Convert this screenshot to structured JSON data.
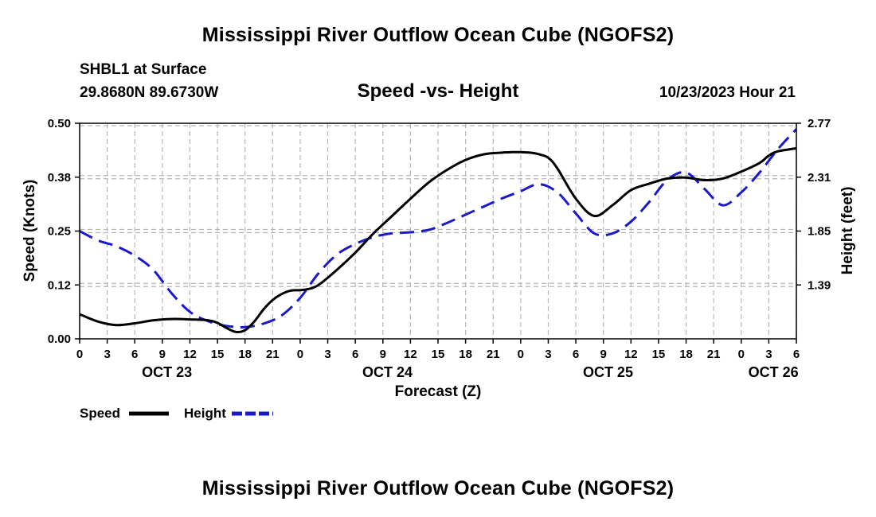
{
  "header": {
    "title": "Mississippi River Outflow Ocean Cube (NGOFS2)",
    "station": "SHBL1 at Surface",
    "coords": "29.8680N  89.6730W",
    "subtitle": "Speed -vs- Height",
    "timestamp": "10/23/2023 Hour 21"
  },
  "footer": {
    "title": "Mississippi River Outflow Ocean Cube (NGOFS2)"
  },
  "legend": {
    "speed_label": "Speed",
    "height_label": "Height"
  },
  "colors": {
    "speed": "#000000",
    "height": "#1a1acc",
    "grid": "#b8b8b8"
  },
  "chart_data": {
    "type": "line",
    "title": "Speed -vs- Height",
    "xlabel": "Forecast (Z)",
    "ylabel_left": "Speed (Knots)",
    "ylabel_right": "Height (feet)",
    "x_unit": "hours from 2023-10-23 00Z",
    "xlim": [
      0,
      78
    ],
    "ylim_left": [
      0,
      0.5
    ],
    "ylim_right": [
      0.93,
      2.77
    ],
    "left_ticks": [
      {
        "value": 0.0,
        "label": "0.00"
      },
      {
        "value": 0.125,
        "label": "0.12"
      },
      {
        "value": 0.25,
        "label": "0.25"
      },
      {
        "value": 0.375,
        "label": "0.38"
      },
      {
        "value": 0.5,
        "label": "0.50"
      }
    ],
    "right_ticks": [
      {
        "value": 1.39,
        "label": "1.39"
      },
      {
        "value": 1.85,
        "label": "1.85"
      },
      {
        "value": 2.31,
        "label": "2.31"
      },
      {
        "value": 2.77,
        "label": "2.77"
      }
    ],
    "x_ticks": [
      {
        "value": 0,
        "label": "0"
      },
      {
        "value": 3,
        "label": "3"
      },
      {
        "value": 6,
        "label": "6"
      },
      {
        "value": 9,
        "label": "9"
      },
      {
        "value": 12,
        "label": "12"
      },
      {
        "value": 15,
        "label": "15"
      },
      {
        "value": 18,
        "label": "18"
      },
      {
        "value": 21,
        "label": "21"
      },
      {
        "value": 24,
        "label": "0"
      },
      {
        "value": 27,
        "label": "3"
      },
      {
        "value": 30,
        "label": "6"
      },
      {
        "value": 33,
        "label": "9"
      },
      {
        "value": 36,
        "label": "12"
      },
      {
        "value": 39,
        "label": "15"
      },
      {
        "value": 42,
        "label": "18"
      },
      {
        "value": 45,
        "label": "21"
      },
      {
        "value": 48,
        "label": "0"
      },
      {
        "value": 51,
        "label": "3"
      },
      {
        "value": 54,
        "label": "6"
      },
      {
        "value": 57,
        "label": "9"
      },
      {
        "value": 60,
        "label": "12"
      },
      {
        "value": 63,
        "label": "15"
      },
      {
        "value": 66,
        "label": "18"
      },
      {
        "value": 69,
        "label": "21"
      },
      {
        "value": 72,
        "label": "0"
      },
      {
        "value": 75,
        "label": "3"
      },
      {
        "value": 78,
        "label": "6"
      }
    ],
    "date_labels": [
      {
        "value": 9.5,
        "label": "OCT 23"
      },
      {
        "value": 33.5,
        "label": "OCT 24"
      },
      {
        "value": 57.5,
        "label": "OCT 25"
      },
      {
        "value": 75.5,
        "label": "OCT 26"
      }
    ],
    "series": [
      {
        "name": "Speed",
        "axis": "left",
        "style": "solid",
        "x": [
          0,
          2,
          4,
          6,
          8,
          10,
          12,
          14,
          15,
          16,
          17,
          18,
          19,
          20,
          21,
          22,
          23,
          24,
          25,
          26,
          28,
          30,
          32,
          34,
          36,
          38,
          40,
          42,
          44,
          46,
          47,
          48,
          49,
          50,
          51,
          52,
          54,
          56,
          58,
          60,
          62,
          64,
          66,
          68,
          70,
          72,
          74,
          75,
          76,
          78
        ],
        "values": [
          0.057,
          0.04,
          0.032,
          0.036,
          0.043,
          0.046,
          0.045,
          0.043,
          0.037,
          0.025,
          0.016,
          0.02,
          0.04,
          0.068,
          0.09,
          0.104,
          0.112,
          0.113,
          0.116,
          0.125,
          0.16,
          0.2,
          0.245,
          0.285,
          0.325,
          0.363,
          0.392,
          0.415,
          0.428,
          0.432,
          0.433,
          0.433,
          0.432,
          0.428,
          0.42,
          0.395,
          0.325,
          0.285,
          0.31,
          0.345,
          0.36,
          0.372,
          0.374,
          0.368,
          0.372,
          0.388,
          0.408,
          0.425,
          0.435,
          0.442
        ]
      },
      {
        "name": "Height",
        "axis": "right",
        "style": "dashed",
        "x": [
          0,
          2,
          4,
          6,
          8,
          10,
          12,
          14,
          16,
          18,
          20,
          22,
          24,
          26,
          28,
          30,
          32,
          34,
          36,
          38,
          40,
          42,
          44,
          46,
          48,
          50,
          52,
          54,
          56,
          58,
          60,
          62,
          64,
          66,
          68,
          70,
          72,
          74,
          76,
          78
        ],
        "values": [
          1.85,
          1.77,
          1.72,
          1.64,
          1.52,
          1.32,
          1.16,
          1.08,
          1.04,
          1.03,
          1.06,
          1.13,
          1.28,
          1.49,
          1.65,
          1.74,
          1.8,
          1.83,
          1.84,
          1.86,
          1.92,
          1.99,
          2.06,
          2.13,
          2.19,
          2.25,
          2.18,
          2.0,
          1.83,
          1.83,
          1.93,
          2.1,
          2.29,
          2.35,
          2.21,
          2.07,
          2.18,
          2.35,
          2.55,
          2.72
        ]
      }
    ]
  }
}
